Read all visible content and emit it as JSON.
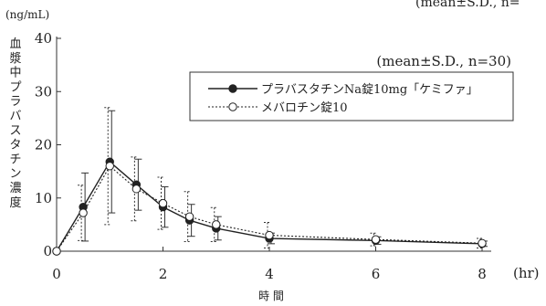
{
  "chart_data": {
    "type": "line",
    "corner_note": "(mean±S.D.,  n=",
    "title": "",
    "annotation": "(mean±S.D.,  n=30)",
    "xlabel": "時 間",
    "xunit": "(hr)",
    "ylabel": "血漿中プラバスタチン濃度",
    "yunit": "(ng/mL)",
    "xlim": [
      0,
      8
    ],
    "ylim": [
      0,
      40
    ],
    "xticks": [
      0,
      2,
      4,
      6,
      8
    ],
    "yticks": [
      0,
      10,
      20,
      30,
      40
    ],
    "x": [
      0,
      0.5,
      1,
      1.5,
      2,
      2.5,
      3,
      4,
      6,
      8
    ],
    "series": [
      {
        "name": "プラバスタチンNa錠10mg「ケミファ」",
        "marker": "filled-circle",
        "line": "solid",
        "values": [
          0,
          8.3,
          16.8,
          12.5,
          8.3,
          5.8,
          4.3,
          2.4,
          2.0,
          1.4
        ],
        "sd": [
          0,
          6.4,
          9.6,
          4.8,
          3.8,
          3.0,
          2.2,
          1.0,
          0.7,
          0.5
        ]
      },
      {
        "name": "メバロチン錠10",
        "marker": "open-circle",
        "line": "dotted",
        "values": [
          0,
          7.2,
          16.0,
          11.7,
          9.0,
          6.5,
          5.0,
          3.0,
          2.2,
          1.5
        ],
        "sd": [
          0,
          5.2,
          11.0,
          6.0,
          4.9,
          4.7,
          3.2,
          2.4,
          1.2,
          0.9
        ]
      }
    ],
    "legend_position": "upper-right",
    "grid": false
  }
}
